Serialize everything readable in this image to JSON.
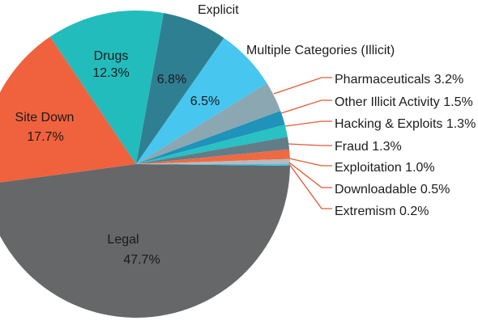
{
  "chart_data": {
    "type": "pie",
    "title": "",
    "slices": [
      {
        "label": "Legal",
        "value": 47.7,
        "color": "#666769"
      },
      {
        "label": "Site Down",
        "value": 17.7,
        "color": "#f0623d"
      },
      {
        "label": "Drugs",
        "value": 12.3,
        "color": "#23bcbd"
      },
      {
        "label": "Explicit",
        "value": 6.8,
        "color": "#2f7f92"
      },
      {
        "label": "Multiple Categories (Illicit)",
        "value": 6.5,
        "color": "#47c6f0"
      },
      {
        "label": "Pharmaceuticals",
        "value": 3.2,
        "color": "#8aa7b2"
      },
      {
        "label": "Other Illicit Activity",
        "value": 1.5,
        "color": "#1f93b9"
      },
      {
        "label": "Hacking & Exploits",
        "value": 1.3,
        "color": "#29c1c3"
      },
      {
        "label": "Fraud",
        "value": 1.3,
        "color": "#627c88"
      },
      {
        "label": "Exploitation",
        "value": 1.0,
        "color": "#ee6a42"
      },
      {
        "label": "Downloadable",
        "value": 0.5,
        "color": "#b9b9bb"
      },
      {
        "label": "Extremism",
        "value": 0.2,
        "color": "#3ec2ec"
      }
    ],
    "labels": {
      "legal": {
        "name": "Legal",
        "pct": "47.7%"
      },
      "site_down": {
        "name": "Site Down",
        "pct": "17.7%"
      },
      "drugs": {
        "name": "Drugs",
        "pct": "12.3%"
      },
      "explicit": {
        "name": "Explicit",
        "pct": "6.8%"
      },
      "multiple": {
        "name": "Multiple Categories (Illicit)",
        "pct": "6.5%"
      },
      "pharma": "Pharmaceuticals 3.2%",
      "other_illicit": "Other Illicit Activity 1.5%",
      "hacking": "Hacking & Exploits 1.3%",
      "fraud": "Fraud 1.3%",
      "exploitation": "Exploitation 1.0%",
      "downloadable": "Downloadable 0.5%",
      "extremism": "Extremism 0.2%"
    }
  }
}
